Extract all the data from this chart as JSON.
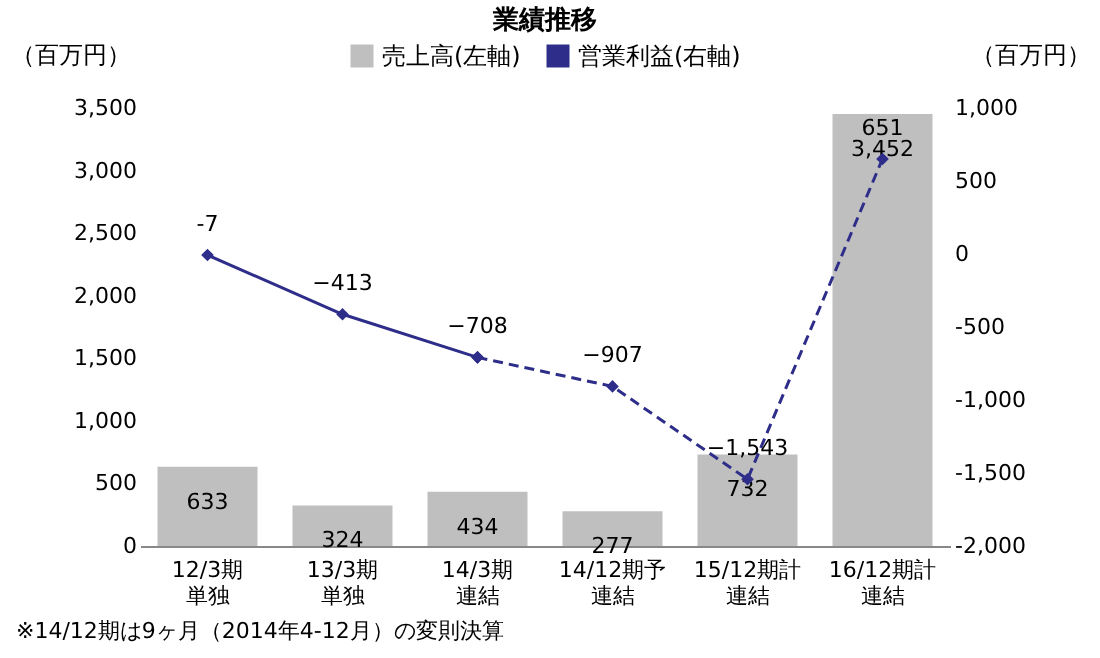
{
  "chart_data": {
    "type": "bar",
    "title": "業績推移",
    "categories": [
      "12/3期単独",
      "13/3期単独",
      "14/3期連結",
      "14/12期予連結",
      "15/12期計連結",
      "16/12期計連結"
    ],
    "series": [
      {
        "name": "売上高(左軸)",
        "color": "#bfbfbf",
        "values": [
          633,
          324,
          434,
          277,
          732,
          3452
        ],
        "value_labels": [
          "633",
          "324",
          "434",
          "277",
          "732",
          "3,452"
        ]
      },
      {
        "name": "営業利益(右軸)",
        "type": "line",
        "axis": "y2",
        "color": "#2e2e8a",
        "line_style": "solid",
        "values": [
          -7,
          -413,
          -708,
          null,
          null,
          null
        ],
        "value_labels": [
          "-7",
          "−413",
          "−708",
          null,
          null,
          null
        ]
      },
      {
        "type": "line",
        "axis": "y2",
        "color": "#2e2e8a",
        "line_style": "dashed",
        "values": [
          null,
          null,
          -708,
          -907,
          -1543,
          651
        ],
        "value_labels": [
          null,
          null,
          null,
          "−907",
          "−1,543",
          "651"
        ]
      }
    ],
    "ylabel": "（百万円）",
    "y2label": "（百万円）",
    "ylim": [
      0,
      3500
    ],
    "yticks": [
      0,
      500,
      {
        "value": 1000,
        "label": "1,000"
      },
      {
        "value": 1500,
        "label": "1,500"
      },
      {
        "value": 2000,
        "label": "2,000"
      },
      {
        "value": 2500,
        "label": "2,500"
      },
      {
        "value": 3000,
        "label": "3,000"
      },
      {
        "value": 3500,
        "label": "3,500"
      }
    ],
    "y2lim": [
      -2000,
      1000
    ],
    "y2ticks": [
      {
        "value": -2000,
        "label": "-2,000"
      },
      {
        "value": -1500,
        "label": "-1,500"
      },
      {
        "value": -1000,
        "label": "-1,000"
      },
      -500,
      0,
      500,
      {
        "value": 1000,
        "label": "1,000"
      }
    ],
    "marker": "diamond",
    "legend": "top",
    "annotations": [
      "※14/12期は9ヶ月（2014年4-12月）の変則決算"
    ]
  }
}
